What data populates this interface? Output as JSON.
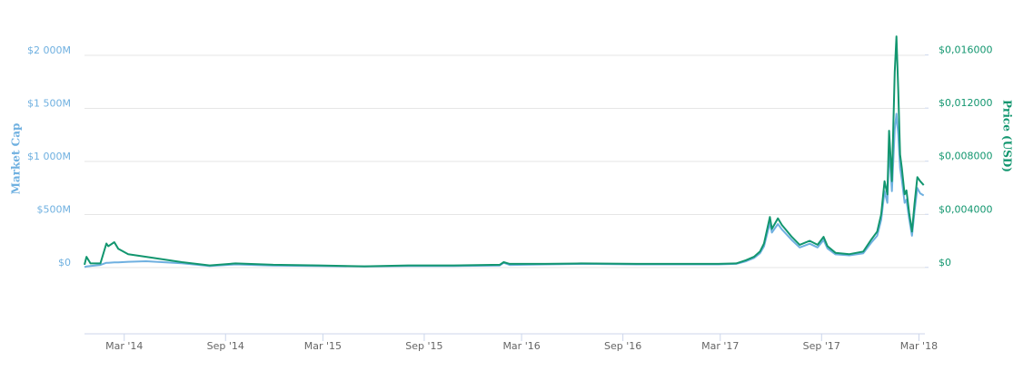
{
  "chart_data": {
    "type": "line",
    "x": [
      2013.96,
      2013.97,
      2013.99,
      2014.04,
      2014.07,
      2014.08,
      2014.11,
      2014.13,
      2014.18,
      2014.27,
      2014.45,
      2014.59,
      2014.72,
      2014.91,
      2015.14,
      2015.37,
      2015.59,
      2015.82,
      2016.05,
      2016.07,
      2016.1,
      2016.28,
      2016.46,
      2016.74,
      2016.97,
      2017.15,
      2017.24,
      2017.29,
      2017.33,
      2017.36,
      2017.38,
      2017.41,
      2017.42,
      2017.45,
      2017.47,
      2017.52,
      2017.56,
      2017.61,
      2017.65,
      2017.68,
      2017.7,
      2017.74,
      2017.81,
      2017.88,
      2017.92,
      2017.95,
      2017.97,
      2017.987,
      2018.001,
      2018.01,
      2018.024,
      2018.038,
      2018.047,
      2018.056,
      2018.065,
      2018.074,
      2018.088,
      2018.097,
      2018.111,
      2018.125,
      2018.138,
      2018.152,
      2018.166,
      2018.184
    ],
    "series": [
      {
        "name": "Market Cap",
        "color": "#6fb0e0",
        "axis": "y",
        "values": [
          5,
          10,
          15,
          25,
          45,
          45,
          50,
          50,
          55,
          60,
          40,
          15,
          30,
          20,
          15,
          10,
          15,
          15,
          20,
          45,
          25,
          30,
          35,
          30,
          30,
          30,
          35,
          60,
          90,
          135,
          200,
          420,
          330,
          410,
          360,
          260,
          190,
          225,
          190,
          260,
          180,
          125,
          115,
          135,
          235,
          300,
          450,
          720,
          610,
          1130,
          720,
          1300,
          1450,
          1250,
          940,
          830,
          610,
          640,
          460,
          300,
          530,
          750,
          700,
          680
        ]
      },
      {
        "name": "Price (USD)",
        "color": "#12966f",
        "axis": "y2",
        "values": [
          0.0002,
          0.0008,
          0.0003,
          0.0003,
          0.0018,
          0.0016,
          0.0019,
          0.0014,
          0.001,
          0.0008,
          0.0004,
          0.00015,
          0.0003,
          0.0002,
          0.00015,
          8e-05,
          0.00015,
          0.00015,
          0.0002,
          0.0004,
          0.00027,
          0.00027,
          0.0003,
          0.00027,
          0.00027,
          0.00027,
          0.0003,
          0.00055,
          0.0008,
          0.0012,
          0.0018,
          0.0038,
          0.0029,
          0.0037,
          0.0032,
          0.0023,
          0.0017,
          0.002,
          0.0017,
          0.0023,
          0.0016,
          0.0011,
          0.001,
          0.0012,
          0.0021,
          0.0027,
          0.004,
          0.0065,
          0.0055,
          0.0103,
          0.0065,
          0.0147,
          0.0174,
          0.0133,
          0.0085,
          0.0075,
          0.0055,
          0.0058,
          0.0041,
          0.0027,
          0.0048,
          0.0068,
          0.0065,
          0.0062
        ]
      }
    ],
    "xlim": [
      2013.96,
      2018.19
    ],
    "xticks": [
      {
        "value": 2014.16,
        "label": "Mar '14"
      },
      {
        "value": 2014.67,
        "label": "Sep '14"
      },
      {
        "value": 2015.16,
        "label": "Mar '15"
      },
      {
        "value": 2015.67,
        "label": "Sep '15"
      },
      {
        "value": 2016.16,
        "label": "Mar '16"
      },
      {
        "value": 2016.67,
        "label": "Sep '16"
      },
      {
        "value": 2017.16,
        "label": "Mar '17"
      },
      {
        "value": 2017.67,
        "label": "Sep '17"
      },
      {
        "value": 2018.16,
        "label": "Mar '18"
      }
    ],
    "ylabel": "Market Cap",
    "ylim": [
      -624,
      2479
    ],
    "yticks": [
      {
        "value": 0,
        "label": "$0"
      },
      {
        "value": 500,
        "label": "$500M"
      },
      {
        "value": 1000,
        "label": "$1 000M"
      },
      {
        "value": 1500,
        "label": "$1 500M"
      },
      {
        "value": 2000,
        "label": "$2 000M"
      }
    ],
    "y2label": "Price (USD)",
    "y2lim": [
      -0.005,
      0.0198
    ],
    "y2ticks": [
      {
        "value": 0,
        "label": "$0"
      },
      {
        "value": 0.004,
        "label": "$0,004000"
      },
      {
        "value": 0.008,
        "label": "$0,008000"
      },
      {
        "value": 0.012,
        "label": "$0,012000"
      },
      {
        "value": 0.016,
        "label": "$0,016000"
      }
    ],
    "grid": true
  }
}
